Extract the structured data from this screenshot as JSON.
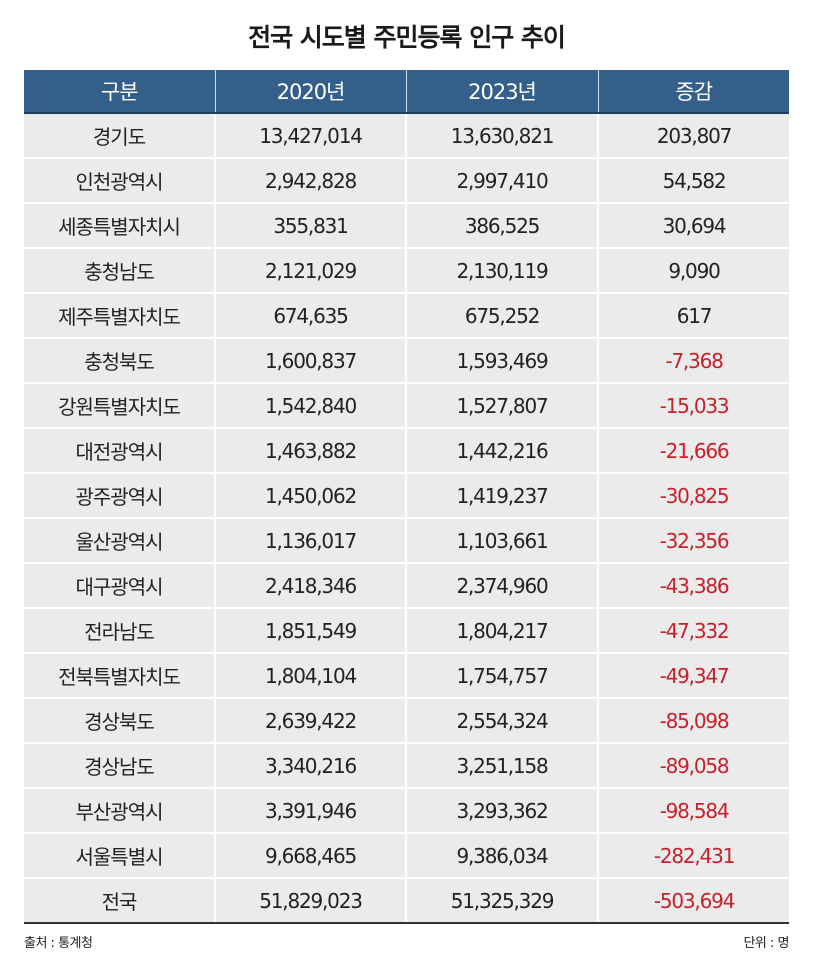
{
  "title": "전국 시도별 주민등록 인구 추이",
  "table": {
    "headers": [
      "구분",
      "2020년",
      "2023년",
      "증감"
    ],
    "rows": [
      {
        "region": "경기도",
        "y2020": "13,427,014",
        "y2023": "13,630,821",
        "change": "203,807",
        "negative": false
      },
      {
        "region": "인천광역시",
        "y2020": "2,942,828",
        "y2023": "2,997,410",
        "change": "54,582",
        "negative": false
      },
      {
        "region": "세종특별자치시",
        "y2020": "355,831",
        "y2023": "386,525",
        "change": "30,694",
        "negative": false
      },
      {
        "region": "충청남도",
        "y2020": "2,121,029",
        "y2023": "2,130,119",
        "change": "9,090",
        "negative": false
      },
      {
        "region": "제주특별자치도",
        "y2020": "674,635",
        "y2023": "675,252",
        "change": "617",
        "negative": false
      },
      {
        "region": "충청북도",
        "y2020": "1,600,837",
        "y2023": "1,593,469",
        "change": "-7,368",
        "negative": true
      },
      {
        "region": "강원특별자치도",
        "y2020": "1,542,840",
        "y2023": "1,527,807",
        "change": "-15,033",
        "negative": true
      },
      {
        "region": "대전광역시",
        "y2020": "1,463,882",
        "y2023": "1,442,216",
        "change": "-21,666",
        "negative": true
      },
      {
        "region": "광주광역시",
        "y2020": "1,450,062",
        "y2023": "1,419,237",
        "change": "-30,825",
        "negative": true
      },
      {
        "region": "울산광역시",
        "y2020": "1,136,017",
        "y2023": "1,103,661",
        "change": "-32,356",
        "negative": true
      },
      {
        "region": "대구광역시",
        "y2020": "2,418,346",
        "y2023": "2,374,960",
        "change": "-43,386",
        "negative": true
      },
      {
        "region": "전라남도",
        "y2020": "1,851,549",
        "y2023": "1,804,217",
        "change": "-47,332",
        "negative": true
      },
      {
        "region": "전북특별자치도",
        "y2020": "1,804,104",
        "y2023": "1,754,757",
        "change": "-49,347",
        "negative": true
      },
      {
        "region": "경상북도",
        "y2020": "2,639,422",
        "y2023": "2,554,324",
        "change": "-85,098",
        "negative": true
      },
      {
        "region": "경상남도",
        "y2020": "3,340,216",
        "y2023": "3,251,158",
        "change": "-89,058",
        "negative": true
      },
      {
        "region": "부산광역시",
        "y2020": "3,391,946",
        "y2023": "3,293,362",
        "change": "-98,584",
        "negative": true
      },
      {
        "region": "서울특별시",
        "y2020": "9,668,465",
        "y2023": "9,386,034",
        "change": "-282,431",
        "negative": true
      },
      {
        "region": "전국",
        "y2020": "51,829,023",
        "y2023": "51,325,329",
        "change": "-503,694",
        "negative": true
      }
    ]
  },
  "footer": {
    "source": "출처 : 통계청",
    "unit": "단위 : 명"
  },
  "colors": {
    "header_bg": "#335f8a",
    "row_bg": "#ebebeb",
    "negative_text": "#c8202a",
    "text": "#222222"
  }
}
